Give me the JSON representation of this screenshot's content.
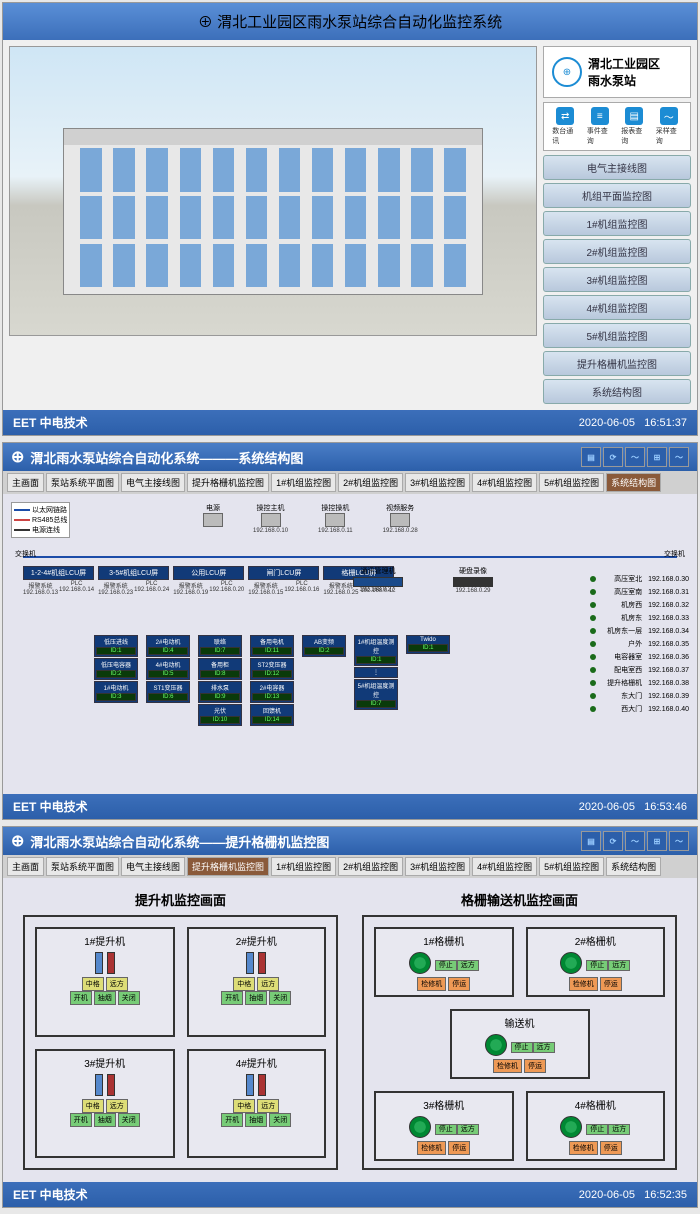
{
  "screen1": {
    "title": "渭北工业园区雨水泵站综合自动化监控系统",
    "station_line1": "渭北工业园区",
    "station_line2": "雨水泵站",
    "quick_icons": [
      {
        "icon": "⇄",
        "label": "数台通讯"
      },
      {
        "icon": "≡",
        "label": "事件查询"
      },
      {
        "icon": "▤",
        "label": "报表查询"
      },
      {
        "icon": "〜",
        "label": "采样查询"
      }
    ],
    "menu": [
      "电气主接线图",
      "机组平面监控图",
      "1#机组监控图",
      "2#机组监控图",
      "3#机组监控图",
      "4#机组监控图",
      "5#机组监控图",
      "提升格栅机监控图",
      "系统结构图"
    ]
  },
  "screen2": {
    "title": "渭北雨水泵站综合自动化系统———系统结构图",
    "tabs": [
      "主画面",
      "泵站系统平面图",
      "电气主接线图",
      "提升格栅机监控图",
      "1#机组监控图",
      "2#机组监控图",
      "3#机组监控图",
      "4#机组监控图",
      "5#机组监控图",
      "系统结构图"
    ],
    "active_tab": "系统结构图",
    "legend": [
      {
        "label": "以太网链路",
        "color": "#1c4ca8"
      },
      {
        "label": "RS485总线",
        "color": "#c44"
      },
      {
        "label": "电源连线",
        "color": "#333"
      }
    ],
    "trunk_left": "交换机",
    "trunk_right": "交换机",
    "top_devices": [
      {
        "label": "电源",
        "ip": ""
      },
      {
        "label": "操控主机",
        "ip": "192.168.0.10"
      },
      {
        "label": "操控操机",
        "ip": "192.168.0.11"
      },
      {
        "label": "视频服务",
        "ip": "192.168.0.28"
      }
    ],
    "lcus": [
      {
        "name": "1-2-4#机组LCU屏",
        "ip1": "报警系统",
        "ip2": "192.168.0.13",
        "ip3": "PLC",
        "ip4": "192.168.0.14"
      },
      {
        "name": "3-5#机组LCU屏",
        "ip1": "报警系统",
        "ip2": "192.168.0.23",
        "ip3": "PLC",
        "ip4": "192.168.0.24"
      },
      {
        "name": "公用LCU屏",
        "ip1": "报警系统",
        "ip2": "192.168.0.19",
        "ip3": "PLC",
        "ip4": "192.168.0.20"
      },
      {
        "name": "闸门LCU屏",
        "ip1": "报警系统",
        "ip2": "192.168.0.15",
        "ip3": "PLC",
        "ip4": "192.168.0.16"
      },
      {
        "name": "格栅LCU屏",
        "ip1": "报警系统",
        "ip2": "192.168.0.25",
        "ip3": "PLC",
        "ip4": "192.168.0.27"
      }
    ],
    "midA": {
      "name": "通讯管理机",
      "ip": "192.168.0.12"
    },
    "midB": {
      "name": "硬盘录像",
      "ip": "192.168.0.29"
    },
    "sub_cols": [
      [
        {
          "n": "低压进线",
          "id": "ID:1"
        },
        {
          "n": "低压电容器",
          "id": "ID:2"
        },
        {
          "n": "1#电动机",
          "id": "ID:3"
        }
      ],
      [
        {
          "n": "2#电动机",
          "id": "ID:4"
        },
        {
          "n": "4#电动机",
          "id": "ID:5"
        },
        {
          "n": "ST1变压器",
          "id": "ID:6"
        }
      ],
      [
        {
          "n": "联络",
          "id": "ID:7"
        },
        {
          "n": "备用柜",
          "id": "ID:8"
        },
        {
          "n": "排水泵",
          "id": "ID:9"
        },
        {
          "n": "光伏",
          "id": "ID:10"
        }
      ],
      [
        {
          "n": "备用电机",
          "id": "ID:11"
        },
        {
          "n": "ST2变压器",
          "id": "ID:12"
        },
        {
          "n": "2#电容器",
          "id": "ID:13"
        },
        {
          "n": "回馈机",
          "id": "ID:14"
        }
      ],
      [
        {
          "n": "AB变频",
          "id": "ID:2"
        }
      ],
      [
        {
          "n": "1#机组温度测控",
          "id": "ID:1"
        },
        {
          "n": "⋮",
          "id": ""
        },
        {
          "n": "5#机组温度测控",
          "id": "ID:7"
        }
      ],
      [
        {
          "n": "Twido",
          "id": "ID:1"
        }
      ]
    ],
    "right": [
      {
        "n": "高压室北",
        "ip": "192.168.0.30"
      },
      {
        "n": "高压室南",
        "ip": "192.168.0.31"
      },
      {
        "n": "机房西",
        "ip": "192.168.0.32"
      },
      {
        "n": "机房东",
        "ip": "192.168.0.33"
      },
      {
        "n": "机房东一层",
        "ip": "192.168.0.34"
      },
      {
        "n": "户外",
        "ip": "192.168.0.35"
      },
      {
        "n": "电容器室",
        "ip": "192.168.0.36"
      },
      {
        "n": "配电室西",
        "ip": "192.168.0.37"
      },
      {
        "n": "提升格栅机",
        "ip": "192.168.0.38"
      },
      {
        "n": "东大门",
        "ip": "192.168.0.39"
      },
      {
        "n": "西大门",
        "ip": "192.168.0.40"
      }
    ]
  },
  "screen3": {
    "title": "渭北雨水泵站综合自动化系统——提升格栅机监控图",
    "tabs": [
      "主画面",
      "泵站系统平面图",
      "电气主接线图",
      "提升格栅机监控图",
      "1#机组监控图",
      "2#机组监控图",
      "3#机组监控图",
      "4#机组监控图",
      "5#机组监控图",
      "系统结构图"
    ],
    "active_tab": "提升格栅机监控图",
    "left_title": "提升机监控画面",
    "right_title": "格栅输送机监控画面",
    "lifts": [
      "1#提升机",
      "2#提升机",
      "3#提升机",
      "4#提升机"
    ],
    "lift_btns1": [
      "中格",
      "远方"
    ],
    "lift_btns2": [
      "开机",
      "抽烟",
      "关闭"
    ],
    "screens": [
      "1#格栅机",
      "2#格栅机",
      "3#格栅机",
      "4#格栅机"
    ],
    "conveyor": "输送机",
    "scr_btns1": [
      "停止",
      "远方"
    ],
    "scr_btns2": [
      "检修机",
      "停运"
    ]
  },
  "footer": {
    "brand": "EET 中电技术",
    "date": "2020-06-05",
    "t1": "16:51:37",
    "t2": "16:53:46",
    "t3": "16:52:35"
  }
}
